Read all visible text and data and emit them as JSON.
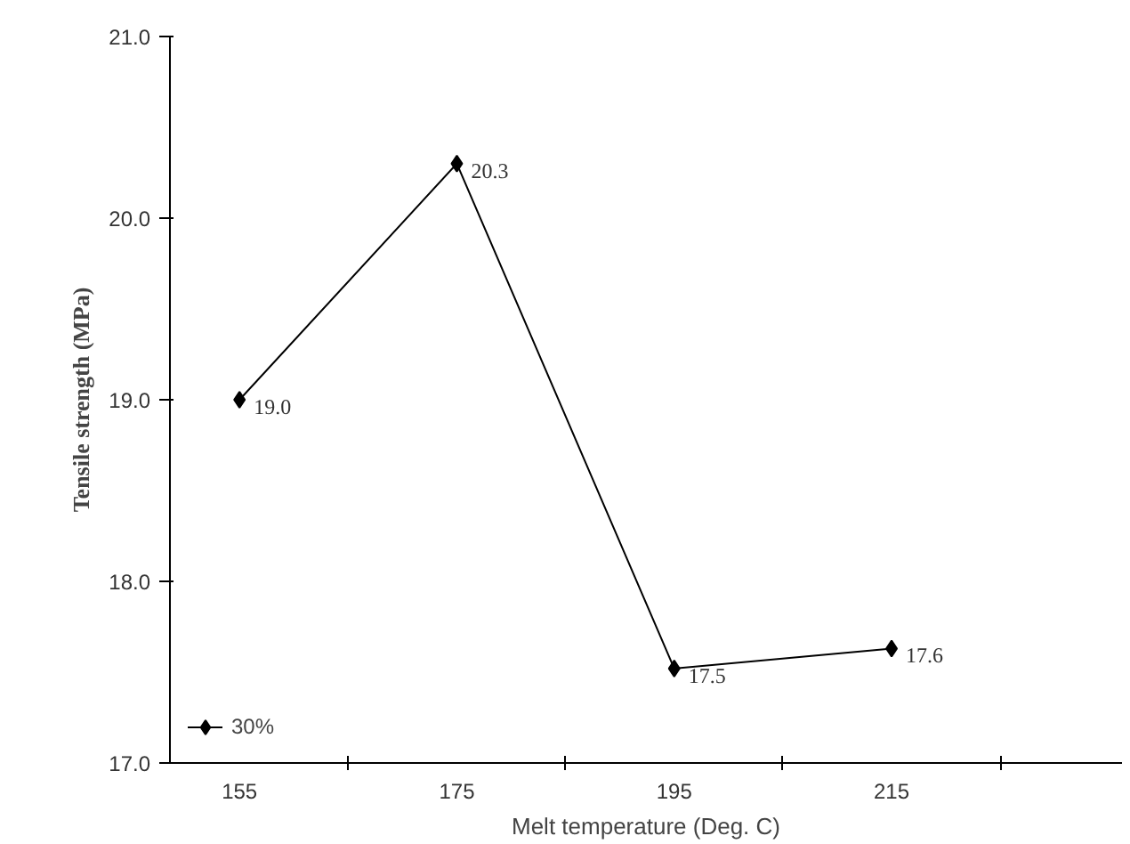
{
  "chart_data": {
    "type": "line",
    "xlabel": "Melt temperature (Deg. C)",
    "ylabel": "Tensile strength (MPa)",
    "categories": [
      "155",
      "175",
      "195",
      "215"
    ],
    "series": [
      {
        "name": "30%",
        "color": "#000000",
        "values": [
          19.0,
          20.3,
          17.52,
          17.63
        ],
        "value_labels": [
          "19.0",
          "20.3",
          "17.5",
          "17.6"
        ]
      }
    ],
    "ylim": [
      17.0,
      21.0
    ],
    "yticks": [
      {
        "value": 17,
        "label": "17.0"
      },
      {
        "value": 18,
        "label": "18.0"
      },
      {
        "value": 19,
        "label": "19.0"
      },
      {
        "value": 20,
        "label": "20.0"
      },
      {
        "value": 21,
        "label": "21.0"
      }
    ],
    "grid": false,
    "legend": "bottom left",
    "marker": "diamond",
    "line_style": "solid"
  }
}
